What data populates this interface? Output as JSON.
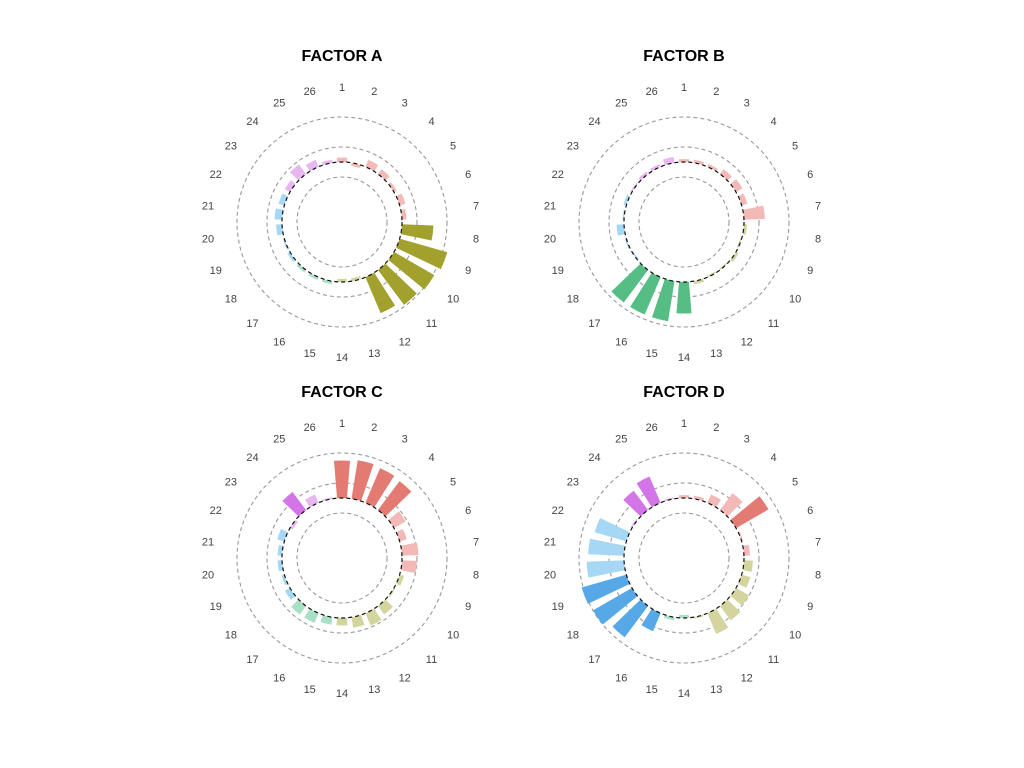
{
  "chart_data": [
    {
      "type": "bar",
      "subtype": "circular-bar",
      "title": "FACTOR A",
      "categories": [
        "1",
        "2",
        "3",
        "4",
        "5",
        "6",
        "7",
        "8",
        "9",
        "10",
        "11",
        "12",
        "13",
        "14",
        "15",
        "16",
        "17",
        "18",
        "19",
        "20",
        "21",
        "22",
        "23",
        "24",
        "25",
        "26"
      ],
      "values": [
        0.15,
        -0.1,
        0.25,
        0.2,
        0.1,
        0.2,
        0.15,
        1.05,
        1.65,
        1.55,
        1.45,
        1.3,
        -0.1,
        -0.1,
        0.1,
        0.1,
        0.1,
        0.1,
        0.05,
        0.2,
        0.25,
        0.2,
        0.2,
        0.4,
        0.25,
        0.1
      ],
      "bar_colors": [
        "#f2b9b7",
        "#f2b9b7",
        "#f2b9b7",
        "#f2b9b7",
        "#f2b9b7",
        "#f2b9b7",
        "#f2b9b7",
        "#a3a12e",
        "#a3a12e",
        "#a3a12e",
        "#a3a12e",
        "#a3a12e",
        "#d4d59e",
        "#d4d59e",
        "#a8e0c5",
        "#a8e0c5",
        "#a8e0c5",
        "#a6d7f5",
        "#a6d7f5",
        "#a6d7f5",
        "#a6d7f5",
        "#a6d7f5",
        "#e8b6f0",
        "#e8b6f0",
        "#e8b6f0",
        "#e8b6f0"
      ],
      "rlim": [
        -1,
        2
      ],
      "grid_r": [
        -0.5,
        0.5,
        1.5
      ]
    },
    {
      "type": "bar",
      "subtype": "circular-bar",
      "title": "FACTOR B",
      "categories": [
        "1",
        "2",
        "3",
        "4",
        "5",
        "6",
        "7",
        "8",
        "9",
        "10",
        "11",
        "12",
        "13",
        "14",
        "15",
        "16",
        "17",
        "18",
        "19",
        "20",
        "21",
        "22",
        "23",
        "24",
        "25",
        "26"
      ],
      "values": [
        0.1,
        0.1,
        0.1,
        0.2,
        0.25,
        0.2,
        0.7,
        0.1,
        -0.05,
        0.1,
        -0.05,
        -0.05,
        0.1,
        1.05,
        1.35,
        1.35,
        1.35,
        -0.05,
        0.05,
        0.25,
        0.05,
        0.1,
        0.05,
        0.1,
        0.1,
        0.2
      ],
      "bar_colors": [
        "#f2b9b7",
        "#f2b9b7",
        "#f2b9b7",
        "#f2b9b7",
        "#f2b9b7",
        "#f2b9b7",
        "#f2b9b7",
        "#d4d59e",
        "#d4d59e",
        "#d4d59e",
        "#d4d59e",
        "#d4d59e",
        "#d4d59e",
        "#56bd84",
        "#56bd84",
        "#56bd84",
        "#56bd84",
        "#a6d7f5",
        "#a6d7f5",
        "#a6d7f5",
        "#a6d7f5",
        "#a6d7f5",
        "#e8b6f0",
        "#e8b6f0",
        "#e8b6f0",
        "#e8b6f0"
      ],
      "rlim": [
        -1,
        2
      ],
      "grid_r": [
        -0.5,
        0.5,
        1.5
      ]
    },
    {
      "type": "bar",
      "subtype": "circular-bar",
      "title": "FACTOR C",
      "categories": [
        "1",
        "2",
        "3",
        "4",
        "5",
        "6",
        "7",
        "8",
        "9",
        "10",
        "11",
        "12",
        "13",
        "14",
        "15",
        "16",
        "17",
        "18",
        "19",
        "20",
        "21",
        "22",
        "23",
        "24",
        "25",
        "26"
      ],
      "values": [
        1.25,
        1.3,
        1.25,
        1.2,
        0.45,
        0.25,
        0.55,
        0.5,
        0.15,
        0.05,
        0.35,
        0.45,
        0.35,
        0.25,
        0.25,
        0.35,
        0.35,
        0.2,
        0.1,
        0.15,
        0.15,
        0.25,
        -0.1,
        0.75,
        0.3,
        0.05
      ],
      "bar_colors": [
        "#e37b72",
        "#e37b72",
        "#e37b72",
        "#e37b72",
        "#f2b9b7",
        "#f2b9b7",
        "#f2b9b7",
        "#f2b9b7",
        "#d4d59e",
        "#d4d59e",
        "#d4d59e",
        "#d4d59e",
        "#d4d59e",
        "#d4d59e",
        "#a8e0c5",
        "#a8e0c5",
        "#a8e0c5",
        "#a6d7f5",
        "#a6d7f5",
        "#a6d7f5",
        "#a6d7f5",
        "#a6d7f5",
        "#e8b6f0",
        "#d375e6",
        "#e8b6f0",
        "#e8b6f0"
      ],
      "rlim": [
        -1,
        2
      ],
      "grid_r": [
        -0.5,
        0.5,
        1.5
      ]
    },
    {
      "type": "bar",
      "subtype": "circular-bar",
      "title": "FACTOR D",
      "categories": [
        "1",
        "2",
        "3",
        "4",
        "5",
        "6",
        "7",
        "8",
        "9",
        "10",
        "11",
        "12",
        "13",
        "14",
        "15",
        "16",
        "17",
        "18",
        "19",
        "20",
        "21",
        "22",
        "23",
        "24",
        "25",
        "26"
      ],
      "values": [
        0.1,
        0.1,
        0.3,
        0.7,
        1.25,
        0.05,
        0.2,
        0.3,
        0.3,
        0.5,
        0.6,
        0.75,
        0.05,
        -0.1,
        0.1,
        0.65,
        1.3,
        1.5,
        1.55,
        1.25,
        1.2,
        1.1,
        0.05,
        0.8,
        0.95,
        0.05
      ],
      "bar_colors": [
        "#f2b9b7",
        "#f2b9b7",
        "#f2b9b7",
        "#f2b9b7",
        "#e37b72",
        "#f2b9b7",
        "#f2b9b7",
        "#d4d59e",
        "#d4d59e",
        "#d4d59e",
        "#d4d59e",
        "#d4d59e",
        "#d4d59e",
        "#a8e0c5",
        "#a8e0c5",
        "#56a9e6",
        "#56a9e6",
        "#56a9e6",
        "#56a9e6",
        "#a6d7f5",
        "#a6d7f5",
        "#a6d7f5",
        "#e8b6f0",
        "#d375e6",
        "#d375e6",
        "#e8b6f0"
      ],
      "rlim": [
        -1,
        2
      ],
      "grid_r": [
        -0.5,
        0.5,
        1.5
      ]
    }
  ],
  "colors": {
    "pink_light": "#f2b9b7",
    "red": "#e37b72",
    "olive": "#a3a12e",
    "khaki_light": "#d4d59e",
    "green": "#56bd84",
    "mint_light": "#a8e0c5",
    "blue": "#56a9e6",
    "blue_light": "#a6d7f5",
    "violet": "#d375e6",
    "violet_light": "#e8b6f0",
    "grid": "#999999",
    "baseline": "#111111"
  }
}
